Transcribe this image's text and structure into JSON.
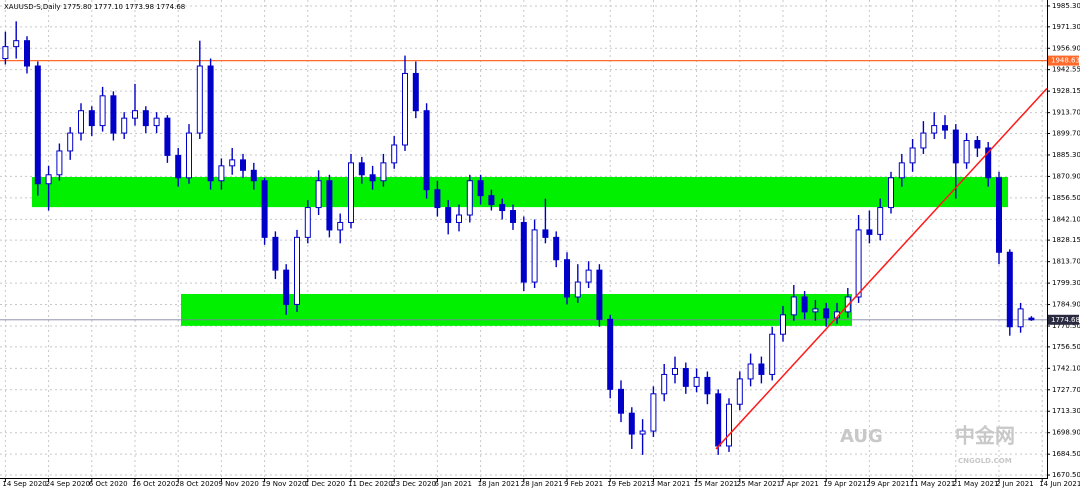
{
  "chart_data": {
    "type": "candlestick",
    "title": "XAUUSD-S,Daily  1775.80 1777.10 1773.98 1774.68",
    "ylim": [
      1668.5,
      1989.3
    ],
    "yticks": [
      {
        "value": 1985.3,
        "label": "1985.30"
      },
      {
        "value": 1971.3,
        "label": "1971.30"
      },
      {
        "value": 1956.9,
        "label": "1956.90"
      },
      {
        "value": 1942.55,
        "label": "1942.55"
      },
      {
        "value": 1928.15,
        "label": "1928.15"
      },
      {
        "value": 1913.7,
        "label": "1913.70"
      },
      {
        "value": 1899.7,
        "label": "1899.70"
      },
      {
        "value": 1885.3,
        "label": "1885.30"
      },
      {
        "value": 1870.9,
        "label": "1870.90"
      },
      {
        "value": 1856.5,
        "label": "1856.50"
      },
      {
        "value": 1842.1,
        "label": "1842.10"
      },
      {
        "value": 1828.15,
        "label": "1828.15"
      },
      {
        "value": 1813.7,
        "label": "1813.70"
      },
      {
        "value": 1799.3,
        "label": "1799.30"
      },
      {
        "value": 1784.9,
        "label": "1784.90"
      },
      {
        "value": 1770.5,
        "label": "1770.50"
      },
      {
        "value": 1756.5,
        "label": "1756.50"
      },
      {
        "value": 1742.1,
        "label": "1742.10"
      },
      {
        "value": 1727.7,
        "label": "1727.70"
      },
      {
        "value": 1713.3,
        "label": "1713.30"
      },
      {
        "value": 1698.9,
        "label": "1698.90"
      },
      {
        "value": 1684.5,
        "label": "1684.50"
      },
      {
        "value": 1670.5,
        "label": "1670.50"
      }
    ],
    "xlabels": [
      "14 Sep 2020",
      "24 Sep 2020",
      "6 Oct 2020",
      "16 Oct 2020",
      "28 Oct 2020",
      "9 Nov 2020",
      "19 Nov 2020",
      "1 Dec 2020",
      "11 Dec 2020",
      "23 Dec 2020",
      "6 Jan 2021",
      "18 Jan 2021",
      "28 Jan 2021",
      "9 Feb 2021",
      "19 Feb 2021",
      "3 Mar 2021",
      "15 Mar 2021",
      "25 Mar 2021",
      "7 Apr 2021",
      "19 Apr 2021",
      "29 Apr 2021",
      "11 May 2021",
      "21 May 2021",
      "2 Jun 2021",
      "14 Jun 2021",
      "24 Jun 2021"
    ],
    "color": "#0000c8",
    "grid": true,
    "resistance": {
      "value": 1948.63,
      "label": "1948.63",
      "color": "#ff6a2a"
    },
    "last_price": {
      "value": 1774.68,
      "label": "1774.68",
      "color": "#8080a8"
    },
    "zones": [
      {
        "from": 1860.4,
        "to": 1870.5,
        "color": "#00f000"
      },
      {
        "from": 1781.3,
        "to": 1792,
        "color": "#00f000"
      }
    ],
    "trendline": {
      "from": 1688,
      "to": 1930,
      "color": "#ff1a1a"
    },
    "watermark": [
      "AUG",
      "中金网",
      "CNGOLD.COM"
    ],
    "ohlc": [
      [
        1950,
        1968,
        1946,
        1958
      ],
      [
        1958,
        1975,
        1950,
        1962
      ],
      [
        1962,
        1965,
        1940,
        1945
      ],
      [
        1945,
        1948,
        1858,
        1866
      ],
      [
        1866,
        1878,
        1848,
        1872
      ],
      [
        1872,
        1893,
        1868,
        1888
      ],
      [
        1888,
        1904,
        1882,
        1900
      ],
      [
        1900,
        1920,
        1895,
        1915
      ],
      [
        1915,
        1918,
        1898,
        1905
      ],
      [
        1905,
        1931,
        1901,
        1925
      ],
      [
        1925,
        1928,
        1895,
        1900
      ],
      [
        1900,
        1914,
        1896,
        1910
      ],
      [
        1910,
        1933,
        1905,
        1915
      ],
      [
        1915,
        1918,
        1900,
        1905
      ],
      [
        1905,
        1914,
        1900,
        1910
      ],
      [
        1910,
        1912,
        1880,
        1885
      ],
      [
        1885,
        1890,
        1864,
        1870
      ],
      [
        1870,
        1906,
        1866,
        1900
      ],
      [
        1900,
        1962,
        1896,
        1945
      ],
      [
        1945,
        1950,
        1862,
        1868
      ],
      [
        1868,
        1883,
        1862,
        1878
      ],
      [
        1878,
        1890,
        1872,
        1882
      ],
      [
        1882,
        1886,
        1870,
        1875
      ],
      [
        1875,
        1880,
        1862,
        1868
      ],
      [
        1868,
        1870,
        1825,
        1830
      ],
      [
        1830,
        1834,
        1802,
        1808
      ],
      [
        1808,
        1812,
        1778,
        1785
      ],
      [
        1785,
        1835,
        1780,
        1830
      ],
      [
        1830,
        1855,
        1826,
        1850
      ],
      [
        1850,
        1875,
        1845,
        1868
      ],
      [
        1868,
        1872,
        1830,
        1835
      ],
      [
        1835,
        1846,
        1826,
        1840
      ],
      [
        1840,
        1886,
        1836,
        1880
      ],
      [
        1880,
        1884,
        1866,
        1872
      ],
      [
        1872,
        1878,
        1862,
        1868
      ],
      [
        1868,
        1886,
        1864,
        1880
      ],
      [
        1880,
        1898,
        1876,
        1892
      ],
      [
        1892,
        1952,
        1888,
        1940
      ],
      [
        1940,
        1948,
        1910,
        1915
      ],
      [
        1915,
        1920,
        1856,
        1862
      ],
      [
        1862,
        1868,
        1844,
        1850
      ],
      [
        1850,
        1855,
        1832,
        1840
      ],
      [
        1840,
        1852,
        1834,
        1845
      ],
      [
        1845,
        1872,
        1840,
        1868
      ],
      [
        1868,
        1872,
        1852,
        1858
      ],
      [
        1858,
        1862,
        1848,
        1852
      ],
      [
        1852,
        1856,
        1842,
        1848
      ],
      [
        1848,
        1852,
        1835,
        1840
      ],
      [
        1840,
        1844,
        1794,
        1800
      ],
      [
        1800,
        1842,
        1796,
        1835
      ],
      [
        1835,
        1856,
        1826,
        1830
      ],
      [
        1830,
        1834,
        1810,
        1815
      ],
      [
        1815,
        1820,
        1785,
        1790
      ],
      [
        1790,
        1812,
        1786,
        1800
      ],
      [
        1800,
        1814,
        1796,
        1808
      ],
      [
        1808,
        1812,
        1770,
        1775
      ],
      [
        1775,
        1778,
        1722,
        1728
      ],
      [
        1728,
        1734,
        1706,
        1712
      ],
      [
        1712,
        1716,
        1688,
        1698
      ],
      [
        1698,
        1708,
        1684,
        1700
      ],
      [
        1700,
        1730,
        1696,
        1725
      ],
      [
        1725,
        1745,
        1720,
        1738
      ],
      [
        1738,
        1750,
        1732,
        1742
      ],
      [
        1742,
        1746,
        1725,
        1730
      ],
      [
        1730,
        1742,
        1726,
        1736
      ],
      [
        1736,
        1740,
        1718,
        1725
      ],
      [
        1725,
        1728,
        1684,
        1690
      ],
      [
        1690,
        1722,
        1686,
        1718
      ],
      [
        1718,
        1740,
        1714,
        1735
      ],
      [
        1735,
        1752,
        1730,
        1745
      ],
      [
        1745,
        1750,
        1732,
        1738
      ],
      [
        1738,
        1770,
        1734,
        1765
      ],
      [
        1765,
        1784,
        1760,
        1778
      ],
      [
        1778,
        1798,
        1774,
        1790
      ],
      [
        1790,
        1794,
        1775,
        1780
      ],
      [
        1780,
        1788,
        1774,
        1782
      ],
      [
        1782,
        1786,
        1770,
        1776
      ],
      [
        1776,
        1786,
        1772,
        1780
      ],
      [
        1780,
        1796,
        1776,
        1790
      ],
      [
        1790,
        1845,
        1786,
        1835
      ],
      [
        1835,
        1848,
        1826,
        1832
      ],
      [
        1832,
        1856,
        1828,
        1850
      ],
      [
        1850,
        1874,
        1846,
        1870
      ],
      [
        1870,
        1886,
        1864,
        1880
      ],
      [
        1880,
        1896,
        1874,
        1890
      ],
      [
        1890,
        1908,
        1886,
        1900
      ],
      [
        1900,
        1914,
        1896,
        1905
      ],
      [
        1905,
        1912,
        1896,
        1902
      ],
      [
        1902,
        1906,
        1856,
        1880
      ],
      [
        1880,
        1900,
        1876,
        1895
      ],
      [
        1895,
        1898,
        1884,
        1890
      ],
      [
        1890,
        1894,
        1864,
        1870
      ],
      [
        1870,
        1874,
        1812,
        1820
      ],
      [
        1820,
        1822,
        1764,
        1770
      ],
      [
        1770,
        1786,
        1766,
        1782
      ],
      [
        1775.8,
        1777.1,
        1773.98,
        1774.68
      ]
    ]
  }
}
